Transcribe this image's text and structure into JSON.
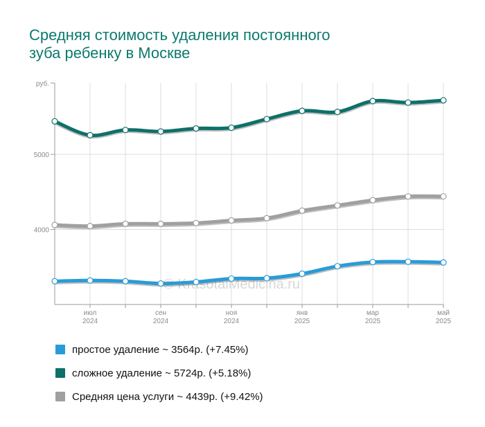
{
  "page": {
    "title_line1": "Средняя стоимость удаления постоянного",
    "title_line2": "зуба ребенку в Москве",
    "watermark": "© KrasotaiMedicina.ru"
  },
  "chart_data": {
    "type": "line",
    "title": "Средняя стоимость удаления постоянного зуба ребенку в Москве",
    "y_unit": "руб.",
    "ylim": [
      3000,
      5950
    ],
    "y_ticks": [
      {
        "value": 4000,
        "label": "4000"
      },
      {
        "value": 5000,
        "label": "5000"
      },
      {
        "value": 5950,
        "label": "руб."
      }
    ],
    "x_ticks": [
      {
        "index": 1,
        "month": "июл",
        "year": "2024"
      },
      {
        "index": 3,
        "month": "сен",
        "year": "2024"
      },
      {
        "index": 5,
        "month": "ноя",
        "year": "2024"
      },
      {
        "index": 7,
        "month": "янв",
        "year": "2025"
      },
      {
        "index": 9,
        "month": "мар",
        "year": "2025"
      },
      {
        "index": 11,
        "month": "май",
        "year": "2025"
      }
    ],
    "x": [
      "2024-06",
      "2024-07",
      "2024-08",
      "2024-09",
      "2024-10",
      "2024-11",
      "2024-12",
      "2025-01",
      "2025-02",
      "2025-03",
      "2025-04",
      "2025-05"
    ],
    "grid": true,
    "series": [
      {
        "key": "complex",
        "color": "#0e7069",
        "values": [
          5440,
          5255,
          5325,
          5305,
          5345,
          5355,
          5470,
          5580,
          5565,
          5710,
          5690,
          5720
        ]
      },
      {
        "key": "average",
        "color": "#a0a0a0",
        "values": [
          4060,
          4045,
          4075,
          4075,
          4085,
          4120,
          4150,
          4250,
          4320,
          4390,
          4440,
          4440
        ]
      },
      {
        "key": "simple",
        "color": "#2a9bd8",
        "values": [
          3310,
          3320,
          3310,
          3280,
          3300,
          3345,
          3350,
          3410,
          3510,
          3565,
          3570,
          3560
        ]
      }
    ]
  },
  "legend": [
    {
      "label": "простое удаление ~ 3564р. (+7.45%)",
      "color": "#2a9bd8"
    },
    {
      "label": "сложное удаление ~ 5724р. (+5.18%)",
      "color": "#0e7069"
    },
    {
      "label": "Средняя цена услуги ~ 4439р. (+9.42%)",
      "color": "#a0a0a0"
    }
  ]
}
